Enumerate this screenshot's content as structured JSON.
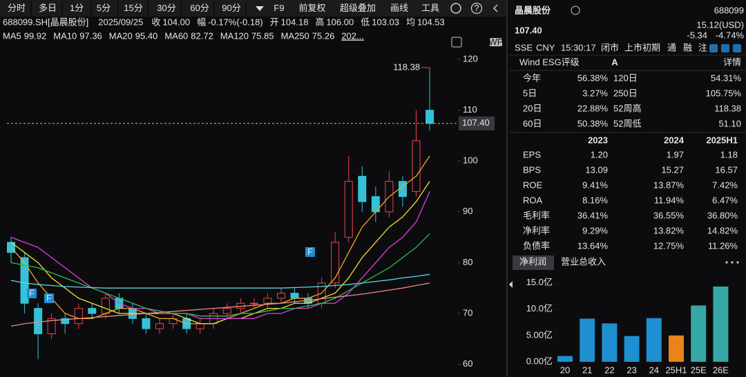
{
  "toolbar": {
    "items": [
      "分时",
      "多日",
      "1分",
      "5分",
      "15分",
      "30分",
      "60分",
      "90分"
    ],
    "items2": [
      "F9",
      "前复权",
      "超级叠加",
      "画线",
      "工具"
    ]
  },
  "info_bar": {
    "symbol": "688099.SH[晶晨股份]",
    "date": "2025/09/25",
    "fields": [
      {
        "label": "收",
        "value": "104.00",
        "color": "#2ebd6b"
      },
      {
        "label": "幅",
        "value": "-0.17%(-0.18)",
        "color": "#2ebd6b"
      },
      {
        "label": "开",
        "value": "104.18",
        "color": "#e6e6e6"
      },
      {
        "label": "高",
        "value": "106.00",
        "color": "#f0424f"
      },
      {
        "label": "低",
        "value": "103.03",
        "color": "#2ebd6b"
      },
      {
        "label": "均",
        "value": "104.53",
        "color": "#f0424f"
      }
    ]
  },
  "ma_legend": {
    "values": [
      "99.92",
      "97.36",
      "95.40",
      "82.72",
      "75.85",
      "75.26"
    ],
    "more": "202..."
  },
  "badges": [
    "F",
    "F",
    "F"
  ],
  "wp_icon": "WP",
  "chart_data": [
    {
      "type": "candlestick",
      "open": [
        84,
        81,
        71,
        66,
        69,
        68,
        71,
        70,
        73,
        71,
        69,
        67,
        68,
        69,
        67,
        68,
        70,
        71,
        72,
        72,
        73,
        74,
        73,
        72,
        76,
        85,
        97,
        93,
        90,
        96,
        94,
        110
      ],
      "high": [
        85,
        82,
        72,
        70,
        70,
        72,
        72,
        74,
        74,
        72,
        70,
        69,
        70,
        70,
        69,
        71,
        72,
        73,
        73,
        74,
        75,
        75,
        74,
        77,
        86,
        101,
        99,
        95,
        98,
        97,
        110,
        118.38
      ],
      "low": [
        80,
        70,
        61,
        65,
        66,
        67,
        69,
        69,
        70,
        68,
        66,
        66,
        67,
        66,
        66,
        67,
        69,
        70,
        71,
        71,
        72,
        72,
        71,
        71,
        75,
        84,
        90,
        88,
        89,
        91,
        93,
        106
      ],
      "close": [
        82,
        72,
        66,
        69,
        68,
        71,
        70,
        73,
        71,
        69,
        67,
        68,
        69,
        67,
        68,
        70,
        71,
        72,
        72,
        73,
        74,
        73,
        72,
        76,
        84,
        96,
        92,
        90,
        96,
        93,
        104,
        107.4
      ],
      "up_color": "#f0424f",
      "down_color": "#35c2d8",
      "series": [
        {
          "name": "MA5",
          "color": "#f5a623",
          "values": [
            83,
            80,
            76,
            73,
            70,
            69,
            69,
            70,
            71,
            71,
            70,
            69,
            69,
            68,
            68,
            68,
            69,
            70,
            71,
            72,
            72,
            73,
            73,
            74,
            77,
            82,
            87,
            90,
            93,
            95,
            97,
            101
          ]
        },
        {
          "name": "MA10",
          "color": "#f0e130",
          "values": [
            84,
            82,
            80,
            77,
            75,
            73,
            72,
            71,
            70,
            70,
            70,
            70,
            70,
            69,
            68,
            68,
            69,
            69,
            70,
            71,
            71,
            72,
            72,
            73,
            74,
            77,
            81,
            84,
            87,
            89,
            92,
            96
          ]
        },
        {
          "name": "MA20",
          "color": "#e040e0",
          "values": [
            85,
            84,
            83,
            81,
            79,
            77,
            75,
            74,
            72,
            71,
            71,
            70,
            70,
            70,
            69,
            69,
            69,
            69,
            69,
            70,
            70,
            71,
            71,
            72,
            72,
            74,
            77,
            80,
            83,
            85,
            88,
            94
          ]
        },
        {
          "name": "MA60",
          "color": "#2fbf4f",
          "values": [
            80,
            79.5,
            79,
            78,
            77,
            76,
            75,
            74,
            73,
            72,
            71,
            70.5,
            70,
            70,
            69.5,
            69.5,
            69.5,
            70,
            70,
            70.5,
            71,
            71,
            71.5,
            72,
            73,
            74.5,
            76,
            77.5,
            79,
            81,
            83,
            85.7
          ]
        },
        {
          "name": "MA120",
          "color": "#5ad7e8",
          "values": [
            76.5,
            76,
            75.7,
            75.5,
            75.3,
            75.2,
            75.1,
            75,
            75,
            75,
            75,
            75,
            75,
            75,
            75,
            75,
            75,
            75,
            75,
            75,
            75,
            75.1,
            75.2,
            75.3,
            75.5,
            75.7,
            76,
            76.3,
            76.6,
            77,
            77.3,
            77.7
          ]
        },
        {
          "name": "MA250",
          "color": "#f08a7a",
          "values": [
            67.5,
            68,
            68.3,
            68.6,
            68.8,
            69,
            69.2,
            69.4,
            69.6,
            69.8,
            70,
            70.2,
            70.4,
            70.6,
            70.8,
            71,
            71.2,
            71.4,
            71.6,
            71.8,
            72,
            72.3,
            72.6,
            72.9,
            73.2,
            73.5,
            73.8,
            74.2,
            74.6,
            75,
            75.5,
            76
          ]
        }
      ],
      "ylim": [
        57.5,
        120
      ],
      "yticks": [
        60,
        70,
        80,
        90,
        100,
        110,
        120
      ],
      "grid": false,
      "last_price": {
        "value": 107.4,
        "label": "107.40"
      },
      "high_label": {
        "value": 118.38,
        "label": "118.38"
      }
    },
    {
      "type": "bar",
      "categories": [
        "20",
        "21",
        "22",
        "23",
        "24",
        "25H1",
        "25E",
        "26E"
      ],
      "values": [
        1.1,
        8.2,
        7.3,
        4.9,
        8.3,
        5.0,
        10.7,
        14.3
      ],
      "colors": [
        "#1f8fd1",
        "#1f8fd1",
        "#1f8fd1",
        "#1f8fd1",
        "#1f8fd1",
        "#e8841a",
        "#35a8a6",
        "#35a8a6"
      ],
      "ylim": [
        0,
        16
      ],
      "yticks": [
        {
          "value": 0,
          "label": "0.00亿"
        },
        {
          "value": 5,
          "label": "5.00亿"
        },
        {
          "value": 10,
          "label": "10.0亿"
        },
        {
          "value": 15,
          "label": "15.0亿"
        }
      ]
    }
  ],
  "quote": {
    "name": "晶晨股份",
    "code": "688099",
    "price": "107.40",
    "usd": "15.12(USD)",
    "change": "-5.34",
    "change_pct": "-4.74%",
    "meta": [
      "SSE",
      "CNY",
      "15:30:17",
      "闭市",
      "上市初期",
      "通",
      "融",
      "注"
    ]
  },
  "esg": {
    "label": "Wind ESG评级",
    "rating": "A",
    "link": "详情"
  },
  "stats": [
    {
      "label": "今年",
      "value": "56.38%",
      "color": "#f0424f"
    },
    {
      "label": "120日",
      "value": "54.31%",
      "color": "#f0424f"
    },
    {
      "label": "5日",
      "value": "3.27%",
      "color": "#f0424f"
    },
    {
      "label": "250日",
      "value": "105.75%",
      "color": "#f0424f"
    },
    {
      "label": "20日",
      "value": "22.88%",
      "color": "#f0424f"
    },
    {
      "label": "52周高",
      "value": "118.38",
      "color": "#e6e6e6"
    },
    {
      "label": "60日",
      "value": "50.38%",
      "color": "#f0424f"
    },
    {
      "label": "52周低",
      "value": "51.10",
      "color": "#e6e6e6"
    }
  ],
  "financials": {
    "years": [
      "2023",
      "2024",
      "2025H1"
    ],
    "rows": [
      [
        "EPS",
        "1.20",
        "1.97",
        "1.18"
      ],
      [
        "BPS",
        "13.09",
        "15.27",
        "16.57"
      ],
      [
        "ROE",
        "9.41%",
        "13.87%",
        "7.42%"
      ],
      [
        "ROA",
        "8.16%",
        "11.94%",
        "6.47%"
      ],
      [
        "毛利率",
        "36.41%",
        "36.55%",
        "36.80%"
      ],
      [
        "净利率",
        "9.29%",
        "13.82%",
        "14.82%"
      ],
      [
        "负债率",
        "13.64%",
        "12.75%",
        "11.26%"
      ]
    ]
  },
  "tabs": [
    "净利润",
    "营业总收入"
  ]
}
